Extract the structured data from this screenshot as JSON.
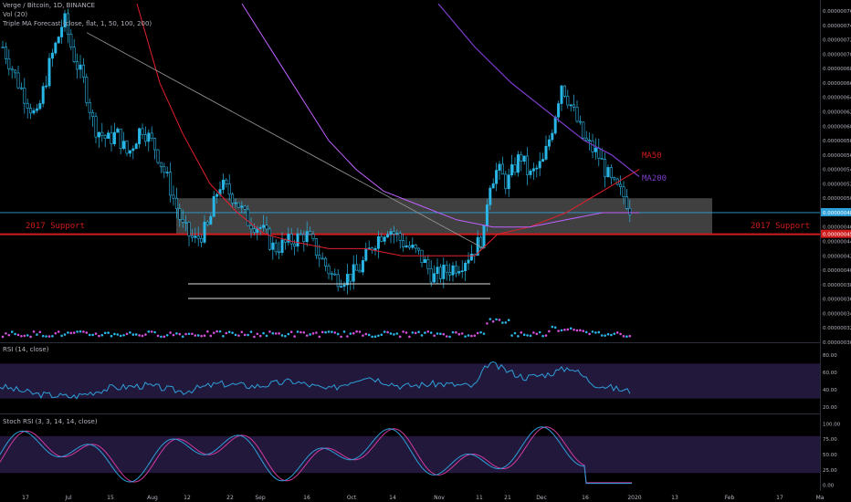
{
  "header": {
    "symbol_line": "Verge / Bitcoin, 1D, BINANCE",
    "volume_line": "Vol (20)",
    "indicator_line": "Triple MA Forecast (close, flat, 1, 50, 100, 200)"
  },
  "annotations": {
    "support_left": "2017 Support",
    "support_right": "2017 Support",
    "ma50_label": "MA50",
    "ma200_label": "MA200"
  },
  "price_axis": {
    "ticks": [
      "0.00000076",
      "0.00000074",
      "0.00000072",
      "0.00000070",
      "0.00000068",
      "0.00000066",
      "0.00000064",
      "0.00000062",
      "0.00000060",
      "0.00000058",
      "0.00000056",
      "0.00000054",
      "0.00000052",
      "0.00000050",
      "0.00000046",
      "0.00000044",
      "0.00000042",
      "0.00000040",
      "0.00000038",
      "0.00000036",
      "0.00000034",
      "0.00000032",
      "0.00000030"
    ],
    "current_price": "0.00000048",
    "support_price": "0.00000045"
  },
  "rsi_panel": {
    "title": "RSI (14, close)",
    "ticks": [
      "80.00",
      "60.00",
      "40.00",
      "20.00"
    ]
  },
  "stoch_panel": {
    "title": "Stoch RSI (3, 3, 14, 14, close)",
    "ticks": [
      "100.00",
      "75.00",
      "50.00",
      "25.00",
      "0.00"
    ]
  },
  "time_axis": {
    "labels": [
      "17",
      "Jul",
      "15",
      "Aug",
      "12",
      "22",
      "Sep",
      "16",
      "Oct",
      "14",
      "Nov",
      "11",
      "21",
      "Dec",
      "16",
      "2020",
      "13",
      "Feb",
      "17",
      "Ma"
    ]
  },
  "colors": {
    "background": "#000000",
    "candle": "#29b6e6",
    "ma50": "#e0202c",
    "ma100": "#c060ff",
    "ma200": "#7b3cc8",
    "support_line": "#d01c1c",
    "zone": "#7f7f7f",
    "rsi_line": "#2e9fd9",
    "band": "#2a1e4a"
  },
  "chart_data": [
    {
      "type": "candlestick",
      "title": "Verge / Bitcoin, 1D, BINANCE",
      "series": [
        {
          "name": "MA50"
        },
        {
          "name": "MA200"
        }
      ],
      "ylim": [
        3e-07,
        7.7e-07
      ],
      "horizontal_levels": [
        4.5e-07,
        4.8e-07
      ],
      "zone": [
        4.5e-07,
        5e-07
      ],
      "close_path": [
        [
          "17 Jun",
          7e-07
        ],
        [
          "Jul",
          7.3e-07
        ],
        [
          "15 Jul",
          6.4e-07
        ],
        [
          "Aug",
          5.8e-07
        ],
        [
          "12 Aug",
          4.5e-07
        ],
        [
          "22 Aug",
          5e-07
        ],
        [
          "Sep",
          4.6e-07
        ],
        [
          "16 Sep",
          4.1e-07
        ],
        [
          "Oct",
          3.9e-07
        ],
        [
          "14 Oct",
          4.4e-07
        ],
        [
          "Nov",
          4e-07
        ],
        [
          "11 Nov",
          4.5e-07
        ],
        [
          "21 Nov",
          5.3e-07
        ],
        [
          "Dec",
          5.4e-07
        ],
        [
          "16 Dec",
          6.4e-07
        ],
        [
          "2020",
          4.8e-07
        ]
      ]
    },
    {
      "type": "line",
      "title": "RSI (14, close)",
      "ylim": [
        15,
        85
      ],
      "band": [
        30,
        70
      ]
    },
    {
      "type": "line",
      "title": "Stoch RSI (3, 3, 14, 14, close)",
      "ylim": [
        -5,
        105
      ],
      "band": [
        20,
        80
      ]
    }
  ]
}
